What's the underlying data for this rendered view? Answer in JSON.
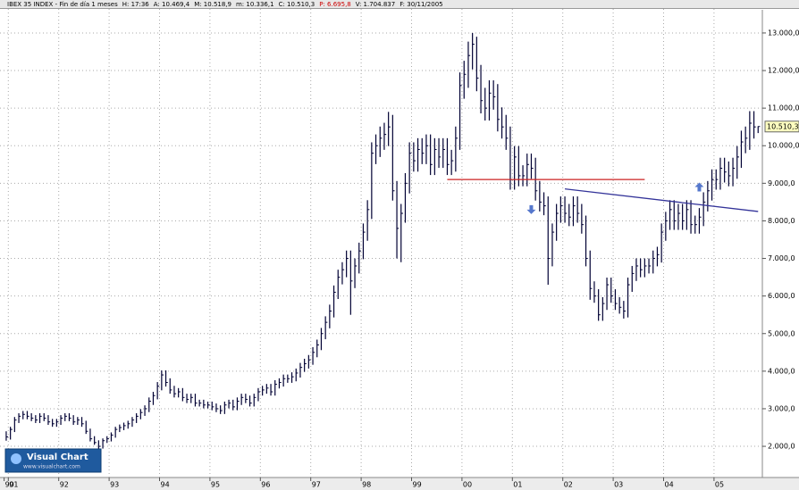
{
  "chart_data": {
    "type": "ohlc",
    "header": [
      {
        "text": "IBEX 35 INDEX - Fin de día 1 meses",
        "color": "#000000"
      },
      {
        "text": "H: 17:36",
        "color": "#000000"
      },
      {
        "text": "A: 10.469,4",
        "color": "#000000"
      },
      {
        "text": "M: 10.518,9",
        "color": "#000000"
      },
      {
        "text": "m: 10.336,1",
        "color": "#000000"
      },
      {
        "text": "C: 10.510,3",
        "color": "#000000"
      },
      {
        "text": "P: 6.695,8",
        "color": "#cc0000"
      },
      {
        "text": "V: 1.704.837",
        "color": "#000000"
      },
      {
        "text": "F: 30/11/2005",
        "color": "#000000"
      }
    ],
    "logo": {
      "title": "Visual Chart",
      "url": "www.visualchart.com"
    },
    "last_price_label": "10.510,3",
    "categories": [
      "90",
      "91",
      null,
      null,
      null,
      null,
      null,
      null,
      null,
      null,
      null,
      null,
      null,
      "92",
      null,
      null,
      null,
      null,
      null,
      null,
      null,
      null,
      null,
      null,
      null,
      "93",
      null,
      null,
      null,
      null,
      null,
      null,
      null,
      null,
      null,
      null,
      null,
      "94",
      null,
      null,
      null,
      null,
      null,
      null,
      null,
      null,
      null,
      null,
      null,
      "95",
      null,
      null,
      null,
      null,
      null,
      null,
      null,
      null,
      null,
      null,
      null,
      "96",
      null,
      null,
      null,
      null,
      null,
      null,
      null,
      null,
      null,
      null,
      null,
      "97",
      null,
      null,
      null,
      null,
      null,
      null,
      null,
      null,
      null,
      null,
      null,
      "98",
      null,
      null,
      null,
      null,
      null,
      null,
      null,
      null,
      null,
      null,
      null,
      "99",
      null,
      null,
      null,
      null,
      null,
      null,
      null,
      null,
      null,
      null,
      null,
      "00",
      null,
      null,
      null,
      null,
      null,
      null,
      null,
      null,
      null,
      null,
      null,
      "01",
      null,
      null,
      null,
      null,
      null,
      null,
      null,
      null,
      null,
      null,
      null,
      "02",
      null,
      null,
      null,
      null,
      null,
      null,
      null,
      null,
      null,
      null,
      null,
      "03",
      null,
      null,
      null,
      null,
      null,
      null,
      null,
      null,
      null,
      null,
      null,
      "04",
      null,
      null,
      null,
      null,
      null,
      null,
      null,
      null,
      null,
      null,
      null,
      "05",
      null,
      null,
      null,
      null,
      null,
      null,
      null,
      null,
      null,
      null
    ],
    "high": [
      2400,
      2520,
      2780,
      2880,
      2940,
      2940,
      2880,
      2830,
      2880,
      2880,
      2830,
      2730,
      2730,
      2830,
      2880,
      2880,
      2830,
      2780,
      2780,
      2680,
      2470,
      2270,
      2160,
      2210,
      2270,
      2370,
      2520,
      2580,
      2630,
      2680,
      2780,
      2880,
      2990,
      3090,
      3300,
      3450,
      3710,
      4020,
      4020,
      3810,
      3610,
      3550,
      3550,
      3400,
      3400,
      3400,
      3240,
      3240,
      3190,
      3190,
      3140,
      3090,
      3190,
      3240,
      3240,
      3300,
      3400,
      3400,
      3350,
      3400,
      3550,
      3610,
      3660,
      3660,
      3760,
      3810,
      3910,
      3910,
      3970,
      4070,
      4220,
      4330,
      4430,
      4640,
      4840,
      5150,
      5460,
      5770,
      6280,
      6700,
      6900,
      7210,
      7210,
      7000,
      7420,
      7930,
      8550,
      10090,
      10300,
      10510,
      10610,
      10900,
      10820,
      9060,
      8450,
      9270,
      10090,
      10090,
      10200,
      10200,
      10300,
      10300,
      10200,
      10200,
      10200,
      10200,
      9890,
      10510,
      11950,
      12260,
      12770,
      13000,
      12900,
      12150,
      11540,
      11740,
      11740,
      11640,
      11020,
      10820,
      10510,
      9990,
      9990,
      9480,
      9790,
      9790,
      9680,
      9060,
      8760,
      8650,
      7930,
      8450,
      8650,
      8650,
      8450,
      8650,
      8650,
      8450,
      8140,
      7210,
      6390,
      6180,
      5970,
      6490,
      6490,
      6180,
      5970,
      5870,
      6490,
      6800,
      7000,
      7000,
      7000,
      7000,
      7210,
      7310,
      7930,
      8240,
      8550,
      8550,
      8450,
      8450,
      8550,
      8550,
      8140,
      8340,
      8760,
      9060,
      9370,
      9370,
      9680,
      9680,
      9580,
      9680,
      9990,
      10400,
      10510,
      10920,
      10920,
      10519
    ],
    "low": [
      2150,
      2180,
      2380,
      2620,
      2720,
      2720,
      2670,
      2620,
      2620,
      2670,
      2570,
      2520,
      2520,
      2570,
      2670,
      2670,
      2570,
      2570,
      2520,
      2330,
      2130,
      2040,
      1940,
      1940,
      2090,
      2130,
      2230,
      2380,
      2430,
      2470,
      2520,
      2620,
      2720,
      2810,
      2910,
      3100,
      3250,
      3490,
      3590,
      3400,
      3300,
      3300,
      3200,
      3150,
      3150,
      3060,
      3060,
      3010,
      3010,
      2960,
      2910,
      2860,
      2860,
      3010,
      2960,
      2960,
      3100,
      3150,
      3060,
      3060,
      3200,
      3350,
      3400,
      3350,
      3350,
      3540,
      3590,
      3690,
      3690,
      3730,
      3830,
      3980,
      4070,
      4170,
      4370,
      4560,
      4850,
      5140,
      5430,
      5920,
      6310,
      6500,
      5500,
      6210,
      6600,
      6980,
      7470,
      8050,
      9510,
      9700,
      9890,
      9990,
      8540,
      7000,
      6900,
      7950,
      8730,
      9310,
      9310,
      9510,
      9510,
      9220,
      9220,
      9410,
      9410,
      9220,
      9220,
      9310,
      9890,
      11250,
      11540,
      12030,
      11450,
      10860,
      10670,
      10670,
      10960,
      10380,
      10190,
      9890,
      8830,
      8830,
      8920,
      8920,
      8920,
      9120,
      8540,
      8250,
      8150,
      6300,
      6790,
      7470,
      7950,
      7950,
      7860,
      7860,
      7950,
      7660,
      6790,
      5900,
      5820,
      5340,
      5340,
      5630,
      5820,
      5630,
      5530,
      5400,
      5430,
      6110,
      6400,
      6500,
      6500,
      6600,
      6600,
      6790,
      6890,
      7470,
      7760,
      7760,
      7760,
      7760,
      7760,
      7660,
      7660,
      7660,
      7860,
      8250,
      8540,
      8830,
      8830,
      9020,
      8920,
      8920,
      9120,
      9410,
      9800,
      9890,
      10190,
      10336
    ],
    "close": [
      2250,
      2450,
      2700,
      2800,
      2850,
      2800,
      2750,
      2700,
      2800,
      2750,
      2650,
      2600,
      2650,
      2750,
      2800,
      2750,
      2650,
      2700,
      2600,
      2400,
      2200,
      2100,
      2000,
      2150,
      2200,
      2300,
      2450,
      2500,
      2550,
      2600,
      2700,
      2800,
      2900,
      3000,
      3200,
      3350,
      3600,
      3900,
      3700,
      3500,
      3400,
      3450,
      3300,
      3250,
      3300,
      3150,
      3150,
      3100,
      3100,
      3050,
      3000,
      2950,
      3100,
      3150,
      3050,
      3200,
      3300,
      3250,
      3150,
      3300,
      3450,
      3500,
      3550,
      3450,
      3650,
      3700,
      3800,
      3800,
      3850,
      3950,
      4100,
      4200,
      4300,
      4500,
      4700,
      5000,
      5300,
      5600,
      6100,
      6500,
      6700,
      7000,
      6400,
      6800,
      7200,
      7700,
      8300,
      9800,
      10000,
      10200,
      10300,
      10500,
      8800,
      7800,
      8200,
      9000,
      9800,
      9600,
      9900,
      9800,
      10000,
      9500,
      9900,
      9700,
      9900,
      9500,
      9600,
      10200,
      11600,
      11900,
      12400,
      12700,
      11800,
      11200,
      11000,
      11400,
      11300,
      10700,
      10500,
      10200,
      9100,
      9700,
      9200,
      9200,
      9500,
      9400,
      8800,
      8500,
      8400,
      7000,
      7700,
      8200,
      8400,
      8200,
      8100,
      8400,
      8200,
      7900,
      7000,
      6200,
      6000,
      5500,
      5800,
      6300,
      6000,
      5800,
      5700,
      5600,
      6300,
      6600,
      6800,
      6700,
      6800,
      6800,
      7000,
      7100,
      7700,
      8000,
      8300,
      8000,
      8200,
      8000,
      8300,
      7900,
      7900,
      8100,
      8500,
      8800,
      9100,
      9100,
      9400,
      9300,
      9200,
      9400,
      9700,
      10100,
      10200,
      10600,
      10500,
      10510
    ],
    "bar_color": "#000033",
    "trend_lines": [
      {
        "color": "#cc2222",
        "x": [
          105,
          152
        ],
        "y": [
          9100,
          9100
        ]
      },
      {
        "color": "#333399",
        "x": [
          133,
          179
        ],
        "y": [
          8850,
          8250
        ]
      }
    ],
    "arrows": [
      {
        "direction": "down",
        "x": 125,
        "y": 8300,
        "color": "#5577cc"
      },
      {
        "direction": "up",
        "x": 165,
        "y": 8900,
        "color": "#5577cc"
      }
    ],
    "ylim": [
      1170,
      13640
    ],
    "yticks": [
      {
        "value": 2000,
        "label": "2.000,0"
      },
      {
        "value": 3000,
        "label": "3.000,0"
      },
      {
        "value": 4000,
        "label": "4.000,0"
      },
      {
        "value": 5000,
        "label": "5.000,0"
      },
      {
        "value": 6000,
        "label": "6.000,0"
      },
      {
        "value": 7000,
        "label": "7.000,0"
      },
      {
        "value": 8000,
        "label": "8.000,0"
      },
      {
        "value": 9000,
        "label": "9.000,0"
      },
      {
        "value": 10000,
        "label": "10.000,0"
      },
      {
        "value": 11000,
        "label": "11.000,0"
      },
      {
        "value": 12000,
        "label": "12.000,0"
      },
      {
        "value": 13000,
        "label": "13.000,0"
      }
    ],
    "grid": true
  }
}
